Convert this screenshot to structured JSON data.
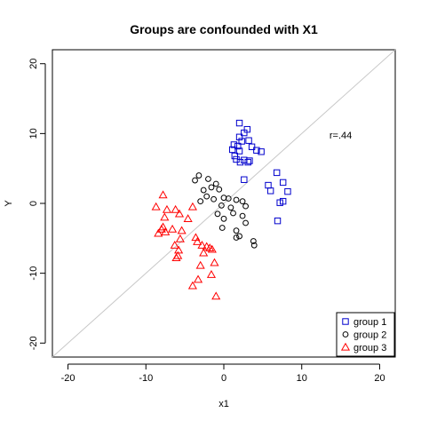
{
  "chart_data": {
    "type": "scatter",
    "title": "Groups are confounded with X1",
    "xlabel": "x1",
    "ylabel": "Y",
    "xlim": [
      -22,
      22
    ],
    "ylim": [
      -22,
      22
    ],
    "xticks": [
      -20,
      -10,
      0,
      10,
      20
    ],
    "yticks": [
      -20,
      -10,
      0,
      10,
      20
    ],
    "xtick_labels": [
      "-20",
      "-10",
      "0",
      "10",
      "20"
    ],
    "ytick_labels": [
      "-20",
      "-10",
      "0",
      "10",
      "20"
    ],
    "grid": false,
    "legend_position": "bottom-right",
    "reference_line": {
      "x": [
        -22,
        22
      ],
      "y": [
        -22,
        22
      ],
      "color": "#c8c8c8"
    },
    "annotation": {
      "text": "r=.44",
      "x": 15.0,
      "y": 9.8
    },
    "series": [
      {
        "name": "group 1",
        "marker": "square",
        "color": "#0000cd",
        "points": [
          [
            2.0,
            11.5
          ],
          [
            3.0,
            10.6
          ],
          [
            2.6,
            10.1
          ],
          [
            2.0,
            9.5
          ],
          [
            2.3,
            8.9
          ],
          [
            3.2,
            9.0
          ],
          [
            1.3,
            8.4
          ],
          [
            1.8,
            8.2
          ],
          [
            3.6,
            8.1
          ],
          [
            1.1,
            7.7
          ],
          [
            2.0,
            7.5
          ],
          [
            4.2,
            7.6
          ],
          [
            4.8,
            7.4
          ],
          [
            1.4,
            6.8
          ],
          [
            2.6,
            6.2
          ],
          [
            3.3,
            6.1
          ],
          [
            3.1,
            5.9
          ],
          [
            2.1,
            5.9
          ],
          [
            1.6,
            6.3
          ],
          [
            6.8,
            4.4
          ],
          [
            2.6,
            3.4
          ],
          [
            7.6,
            3.0
          ],
          [
            5.7,
            2.6
          ],
          [
            6.0,
            1.8
          ],
          [
            8.2,
            1.7
          ],
          [
            7.6,
            0.3
          ],
          [
            7.2,
            0.1
          ],
          [
            6.9,
            -2.5
          ]
        ]
      },
      {
        "name": "group 2",
        "marker": "circle",
        "color": "#000000",
        "points": [
          [
            -3.2,
            4.0
          ],
          [
            -3.7,
            3.3
          ],
          [
            -2.0,
            3.5
          ],
          [
            -1.0,
            2.8
          ],
          [
            -1.6,
            2.3
          ],
          [
            -2.6,
            1.9
          ],
          [
            -0.6,
            2.0
          ],
          [
            -2.2,
            1.0
          ],
          [
            -3.0,
            0.3
          ],
          [
            -1.3,
            0.6
          ],
          [
            0.6,
            0.7
          ],
          [
            0.0,
            0.8
          ],
          [
            1.6,
            0.5
          ],
          [
            2.4,
            0.3
          ],
          [
            -0.3,
            -0.3
          ],
          [
            0.9,
            -0.6
          ],
          [
            2.8,
            -0.4
          ],
          [
            -0.8,
            -1.5
          ],
          [
            1.2,
            -1.4
          ],
          [
            2.4,
            -1.8
          ],
          [
            0.0,
            -2.2
          ],
          [
            2.8,
            -2.8
          ],
          [
            -0.2,
            -3.5
          ],
          [
            1.6,
            -3.9
          ],
          [
            2.0,
            -4.7
          ],
          [
            1.6,
            -4.9
          ],
          [
            3.8,
            -5.4
          ],
          [
            3.9,
            -6.0
          ]
        ]
      },
      {
        "name": "group 3",
        "marker": "triangle",
        "color": "#ff0000",
        "points": [
          [
            -7.8,
            1.2
          ],
          [
            -8.7,
            -0.5
          ],
          [
            -7.3,
            -0.9
          ],
          [
            -6.2,
            -0.9
          ],
          [
            -4.0,
            -0.5
          ],
          [
            -5.7,
            -1.5
          ],
          [
            -7.6,
            -2.0
          ],
          [
            -4.6,
            -2.2
          ],
          [
            -7.8,
            -3.4
          ],
          [
            -8.0,
            -3.7
          ],
          [
            -7.5,
            -4.1
          ],
          [
            -8.4,
            -4.3
          ],
          [
            -6.6,
            -3.7
          ],
          [
            -5.4,
            -3.9
          ],
          [
            -3.6,
            -4.9
          ],
          [
            -3.4,
            -5.5
          ],
          [
            -5.6,
            -5.1
          ],
          [
            -6.3,
            -6.0
          ],
          [
            -2.8,
            -6.0
          ],
          [
            -2.2,
            -6.2
          ],
          [
            -1.8,
            -6.4
          ],
          [
            -1.5,
            -6.6
          ],
          [
            -5.8,
            -6.7
          ],
          [
            -5.9,
            -7.5
          ],
          [
            -2.6,
            -7.1
          ],
          [
            -6.1,
            -7.8
          ],
          [
            -3.0,
            -8.9
          ],
          [
            -1.2,
            -8.5
          ],
          [
            -1.6,
            -10.2
          ],
          [
            -3.3,
            -10.9
          ],
          [
            -4.0,
            -11.8
          ],
          [
            -1.0,
            -13.3
          ]
        ]
      }
    ]
  }
}
